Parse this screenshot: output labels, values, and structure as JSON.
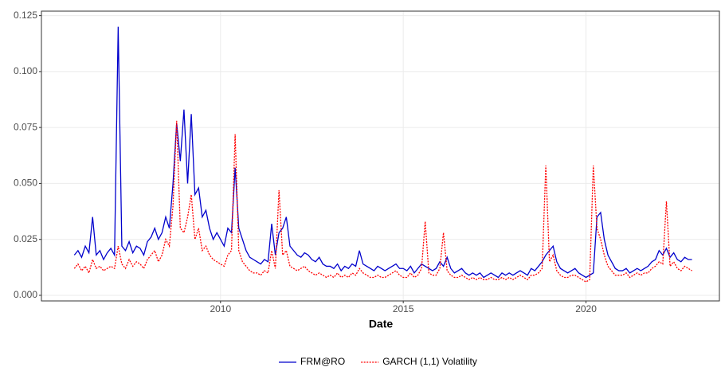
{
  "chart_data": {
    "type": "line",
    "x_label": "Date",
    "x": [
      2006.0,
      2006.1,
      2006.2,
      2006.3,
      2006.4,
      2006.5,
      2006.6,
      2006.7,
      2006.8,
      2006.9,
      2007.0,
      2007.1,
      2007.2,
      2007.3,
      2007.4,
      2007.5,
      2007.6,
      2007.7,
      2007.8,
      2007.9,
      2008.0,
      2008.1,
      2008.2,
      2008.3,
      2008.4,
      2008.5,
      2008.6,
      2008.7,
      2008.8,
      2008.9,
      2009.0,
      2009.1,
      2009.2,
      2009.3,
      2009.4,
      2009.5,
      2009.6,
      2009.7,
      2009.8,
      2009.9,
      2010.0,
      2010.1,
      2010.2,
      2010.3,
      2010.4,
      2010.5,
      2010.6,
      2010.7,
      2010.8,
      2010.9,
      2011.0,
      2011.1,
      2011.2,
      2011.3,
      2011.4,
      2011.5,
      2011.6,
      2011.7,
      2011.8,
      2011.9,
      2012.0,
      2012.1,
      2012.2,
      2012.3,
      2012.4,
      2012.5,
      2012.6,
      2012.7,
      2012.8,
      2012.9,
      2013.0,
      2013.1,
      2013.2,
      2013.3,
      2013.4,
      2013.5,
      2013.6,
      2013.7,
      2013.8,
      2013.9,
      2014.0,
      2014.1,
      2014.2,
      2014.3,
      2014.4,
      2014.5,
      2014.6,
      2014.7,
      2014.8,
      2014.9,
      2015.0,
      2015.1,
      2015.2,
      2015.3,
      2015.4,
      2015.5,
      2015.6,
      2015.7,
      2015.8,
      2015.9,
      2016.0,
      2016.1,
      2016.2,
      2016.3,
      2016.4,
      2016.5,
      2016.6,
      2016.7,
      2016.8,
      2016.9,
      2017.0,
      2017.1,
      2017.2,
      2017.3,
      2017.4,
      2017.5,
      2017.6,
      2017.7,
      2017.8,
      2017.9,
      2018.0,
      2018.1,
      2018.2,
      2018.3,
      2018.4,
      2018.5,
      2018.6,
      2018.7,
      2018.8,
      2018.9,
      2019.0,
      2019.1,
      2019.2,
      2019.3,
      2019.4,
      2019.5,
      2019.6,
      2019.7,
      2019.8,
      2019.9,
      2020.0,
      2020.1,
      2020.2,
      2020.3,
      2020.4,
      2020.5,
      2020.6,
      2020.7,
      2020.8,
      2020.9,
      2021.0,
      2021.1,
      2021.2,
      2021.3,
      2021.4,
      2021.5,
      2021.6,
      2021.7,
      2021.8,
      2021.9,
      2022.0,
      2022.1,
      2022.2,
      2022.3,
      2022.4,
      2022.5,
      2022.6,
      2022.7,
      2022.8,
      2022.9
    ],
    "series": [
      {
        "name": "FRM@RO",
        "color": "#0000cc",
        "dash": "solid",
        "values": [
          0.018,
          0.02,
          0.017,
          0.022,
          0.019,
          0.035,
          0.018,
          0.02,
          0.016,
          0.019,
          0.021,
          0.018,
          0.12,
          0.022,
          0.02,
          0.024,
          0.019,
          0.022,
          0.021,
          0.018,
          0.024,
          0.026,
          0.03,
          0.025,
          0.028,
          0.035,
          0.03,
          0.05,
          0.077,
          0.06,
          0.083,
          0.05,
          0.081,
          0.045,
          0.048,
          0.035,
          0.038,
          0.03,
          0.025,
          0.028,
          0.025,
          0.022,
          0.03,
          0.028,
          0.057,
          0.03,
          0.025,
          0.02,
          0.017,
          0.016,
          0.015,
          0.014,
          0.016,
          0.015,
          0.032,
          0.018,
          0.028,
          0.03,
          0.035,
          0.022,
          0.02,
          0.018,
          0.017,
          0.019,
          0.018,
          0.016,
          0.015,
          0.017,
          0.014,
          0.013,
          0.013,
          0.012,
          0.014,
          0.011,
          0.013,
          0.012,
          0.014,
          0.013,
          0.02,
          0.014,
          0.013,
          0.012,
          0.011,
          0.013,
          0.012,
          0.011,
          0.012,
          0.013,
          0.014,
          0.012,
          0.012,
          0.011,
          0.013,
          0.01,
          0.012,
          0.014,
          0.013,
          0.012,
          0.011,
          0.012,
          0.015,
          0.013,
          0.017,
          0.012,
          0.01,
          0.011,
          0.012,
          0.01,
          0.009,
          0.01,
          0.009,
          0.01,
          0.008,
          0.009,
          0.01,
          0.009,
          0.008,
          0.01,
          0.009,
          0.01,
          0.009,
          0.01,
          0.011,
          0.01,
          0.009,
          0.012,
          0.011,
          0.013,
          0.015,
          0.018,
          0.02,
          0.022,
          0.015,
          0.012,
          0.011,
          0.01,
          0.011,
          0.012,
          0.01,
          0.009,
          0.008,
          0.009,
          0.01,
          0.035,
          0.037,
          0.025,
          0.018,
          0.015,
          0.012,
          0.011,
          0.011,
          0.012,
          0.01,
          0.011,
          0.012,
          0.011,
          0.012,
          0.013,
          0.015,
          0.016,
          0.02,
          0.018,
          0.021,
          0.017,
          0.019,
          0.016,
          0.015,
          0.017,
          0.016,
          0.016
        ]
      },
      {
        "name": "GARCH (1,1) Volatility",
        "color": "#ff0000",
        "dash": "dotted",
        "values": [
          0.012,
          0.014,
          0.011,
          0.013,
          0.01,
          0.016,
          0.012,
          0.013,
          0.011,
          0.012,
          0.013,
          0.012,
          0.022,
          0.014,
          0.012,
          0.016,
          0.013,
          0.015,
          0.014,
          0.012,
          0.016,
          0.018,
          0.02,
          0.015,
          0.018,
          0.025,
          0.022,
          0.04,
          0.078,
          0.03,
          0.028,
          0.035,
          0.045,
          0.025,
          0.03,
          0.02,
          0.022,
          0.018,
          0.016,
          0.015,
          0.014,
          0.013,
          0.018,
          0.02,
          0.072,
          0.02,
          0.015,
          0.013,
          0.011,
          0.01,
          0.01,
          0.009,
          0.011,
          0.01,
          0.02,
          0.012,
          0.047,
          0.018,
          0.02,
          0.013,
          0.012,
          0.011,
          0.012,
          0.013,
          0.011,
          0.01,
          0.009,
          0.01,
          0.009,
          0.008,
          0.009,
          0.008,
          0.01,
          0.008,
          0.009,
          0.008,
          0.01,
          0.009,
          0.012,
          0.01,
          0.009,
          0.008,
          0.008,
          0.009,
          0.008,
          0.008,
          0.009,
          0.01,
          0.011,
          0.009,
          0.008,
          0.008,
          0.01,
          0.008,
          0.009,
          0.012,
          0.033,
          0.01,
          0.009,
          0.009,
          0.012,
          0.028,
          0.011,
          0.009,
          0.008,
          0.008,
          0.009,
          0.008,
          0.007,
          0.008,
          0.007,
          0.008,
          0.007,
          0.007,
          0.008,
          0.007,
          0.007,
          0.008,
          0.007,
          0.008,
          0.007,
          0.008,
          0.009,
          0.008,
          0.007,
          0.009,
          0.009,
          0.01,
          0.012,
          0.058,
          0.015,
          0.018,
          0.011,
          0.009,
          0.008,
          0.008,
          0.009,
          0.009,
          0.008,
          0.007,
          0.006,
          0.007,
          0.058,
          0.03,
          0.025,
          0.018,
          0.013,
          0.011,
          0.009,
          0.009,
          0.009,
          0.01,
          0.008,
          0.009,
          0.01,
          0.009,
          0.01,
          0.01,
          0.012,
          0.013,
          0.015,
          0.014,
          0.042,
          0.013,
          0.015,
          0.012,
          0.011,
          0.013,
          0.012,
          0.011
        ]
      }
    ],
    "xlim": [
      2005.1,
      2023.65
    ],
    "xticks": [
      2010,
      2015,
      2020
    ],
    "ylim": [
      -0.0025,
      0.127
    ],
    "yticks": [
      {
        "value": 0,
        "label": "0.000"
      },
      0.025,
      {
        "value": 0.05,
        "label": "0.050"
      },
      0.075,
      {
        "value": 0.1,
        "label": "0.100"
      },
      0.125
    ],
    "grid": true,
    "legend": "bottom"
  }
}
